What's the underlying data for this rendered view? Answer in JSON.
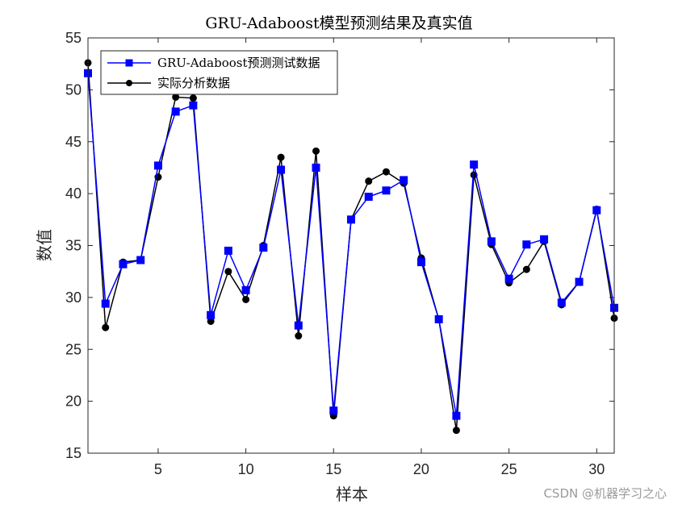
{
  "chart_data": {
    "type": "line",
    "title": "GRU-Adaboost模型预测结果及真实值",
    "xlabel": "样本",
    "ylabel": "数值",
    "xlim": [
      1,
      31
    ],
    "ylim": [
      15,
      55
    ],
    "xticks": [
      5,
      10,
      15,
      20,
      25,
      30
    ],
    "yticks": [
      15,
      20,
      25,
      30,
      35,
      40,
      45,
      50,
      55
    ],
    "legend_position": "top-left",
    "x": [
      1,
      2,
      3,
      4,
      5,
      6,
      7,
      8,
      9,
      10,
      11,
      12,
      13,
      14,
      15,
      16,
      17,
      18,
      19,
      20,
      21,
      22,
      23,
      24,
      25,
      26,
      27,
      28,
      29,
      30,
      31
    ],
    "series": [
      {
        "name": "GRU-Adaboost预测测试数据",
        "color": "#0000ff",
        "marker": "square",
        "values": [
          51.6,
          29.4,
          33.2,
          33.6,
          42.7,
          47.9,
          48.5,
          28.3,
          34.5,
          30.7,
          34.8,
          42.3,
          27.3,
          42.5,
          19.1,
          37.5,
          39.7,
          40.3,
          41.3,
          33.4,
          27.9,
          18.6,
          42.8,
          35.4,
          31.8,
          35.1,
          35.6,
          29.5,
          31.5,
          38.4,
          29.0
        ]
      },
      {
        "name": "实际分析数据",
        "color": "#000000",
        "marker": "circle",
        "values": [
          52.6,
          27.1,
          33.4,
          33.6,
          41.6,
          49.3,
          49.2,
          27.7,
          32.5,
          29.8,
          35.0,
          43.5,
          26.3,
          44.1,
          18.6,
          37.5,
          41.2,
          42.1,
          41.0,
          33.8,
          27.9,
          17.2,
          41.8,
          35.1,
          31.4,
          32.7,
          35.4,
          29.3,
          31.5,
          38.5,
          28.0
        ]
      }
    ]
  },
  "watermark": "CSDN @机器学习之心"
}
